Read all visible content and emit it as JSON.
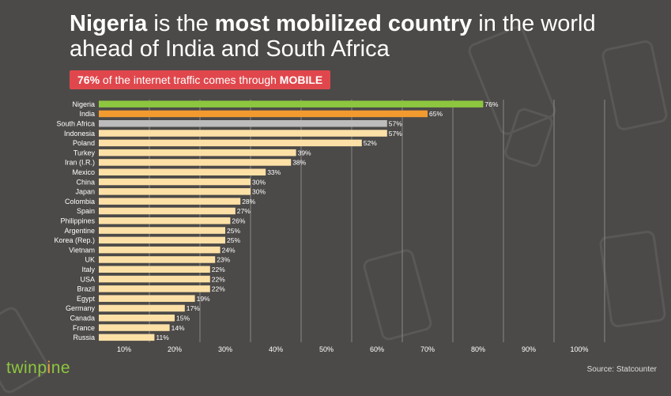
{
  "title": {
    "highlight1": "Nigeria",
    "text1": " is the ",
    "highlight2": "most mobilized country",
    "text2": " in the world ahead of India and South Africa"
  },
  "banner": {
    "highlight1": "76%",
    "text": " of the internet traffic comes through ",
    "highlight2": "MOBILE",
    "color": "#e0474c"
  },
  "chart_data": {
    "type": "bar",
    "orientation": "horizontal",
    "title": "Nigeria is the most mobilized country in the world ahead of India and South Africa",
    "xlabel": "",
    "ylabel": "",
    "xlim": [
      0,
      100
    ],
    "x_ticks": [
      "10%",
      "20%",
      "30%",
      "40%",
      "50%",
      "60%",
      "70%",
      "80%",
      "90%",
      "100%"
    ],
    "grid": true,
    "categories": [
      "Nigeria",
      "India",
      "South Africa",
      "Indonesia",
      "Poland",
      "Turkey",
      "Iran (I.R.)",
      "Mexico",
      "China",
      "Japan",
      "Colombia",
      "Spain",
      "Philippines",
      "Argentine",
      "Korea (Rep.)",
      "Vietnam",
      "UK",
      "Italy",
      "USA",
      "Brazil",
      "Egypt",
      "Germany",
      "Canada",
      "France",
      "Russia"
    ],
    "values": [
      76,
      65,
      57,
      57,
      52,
      39,
      38,
      33,
      30,
      30,
      28,
      27,
      26,
      25,
      25,
      24,
      23,
      22,
      22,
      22,
      19,
      17,
      15,
      14,
      11
    ],
    "value_labels": [
      "76%",
      "65%",
      "57%",
      "57%",
      "52%",
      "39%",
      "38%",
      "33%",
      "30%",
      "30%",
      "28%",
      "27%",
      "26%",
      "25%",
      "25%",
      "24%",
      "23%",
      "22%",
      "22%",
      "22%",
      "19%",
      "17%",
      "15%",
      "14%",
      "11%"
    ],
    "bar_colors": [
      "#8dc63f",
      "#f39a2f",
      "#bcbcbc",
      "#fde0a6",
      "#fde0a6",
      "#fde0a6",
      "#fde0a6",
      "#fde0a6",
      "#fde0a6",
      "#fde0a6",
      "#fde0a6",
      "#fde0a6",
      "#fde0a6",
      "#fde0a6",
      "#fde0a6",
      "#fde0a6",
      "#fde0a6",
      "#fde0a6",
      "#fde0a6",
      "#fde0a6",
      "#fde0a6",
      "#fde0a6",
      "#fde0a6",
      "#fde0a6",
      "#fde0a6"
    ]
  },
  "logo": {
    "part1": "twinp",
    "part2": "i",
    "part3": "ne"
  },
  "source": "Source: Statcounter",
  "colors": {
    "background": "#4c4a48",
    "gridline": "#8a8886",
    "label_text": "#ffffff",
    "brand_green": "#8dc63f",
    "brand_orange": "#e8a33d"
  }
}
